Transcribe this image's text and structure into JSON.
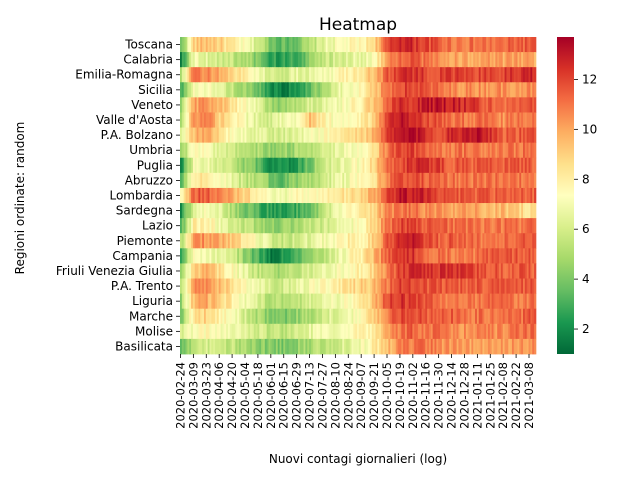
{
  "chart_data": {
    "type": "heatmap",
    "title": "Heatmap",
    "xlabel": "Nuovi contagi giornalieri (log)",
    "ylabel": "Regioni ordinate: random",
    "colormap": "RdYlGn_r",
    "colorbar": {
      "vmin": 1,
      "vmax": 13.7,
      "ticks": [
        2,
        4,
        6,
        8,
        10,
        12
      ]
    },
    "regions": [
      "Toscana",
      "Calabria",
      "Emilia-Romagna",
      "Sicilia",
      "Veneto",
      "Valle d'Aosta",
      "P.A. Bolzano",
      "Umbria",
      "Puglia",
      "Abruzzo",
      "Lombardia",
      "Sardegna",
      "Lazio",
      "Piemonte",
      "Campania",
      "Friuli Venezia Giulia",
      "P.A. Trento",
      "Liguria",
      "Marche",
      "Molise",
      "Basilicata"
    ],
    "x_tick_labels": [
      "2020-02-24",
      "2020-03-09",
      "2020-03-23",
      "2020-04-06",
      "2020-04-20",
      "2020-05-04",
      "2020-05-18",
      "2020-06-01",
      "2020-06-15",
      "2020-06-29",
      "2020-07-13",
      "2020-07-27",
      "2020-08-10",
      "2020-08-24",
      "2020-09-07",
      "2020-09-21",
      "2020-10-05",
      "2020-10-19",
      "2020-11-02",
      "2020-11-16",
      "2020-11-30",
      "2020-12-14",
      "2020-12-28",
      "2021-01-11",
      "2021-01-25",
      "2021-02-08",
      "2021-02-22",
      "2021-03-08"
    ],
    "anchor_dates": [
      "2020-02-24",
      "2020-03-09",
      "2020-03-23",
      "2020-04-06",
      "2020-04-20",
      "2020-05-04",
      "2020-05-18",
      "2020-06-01",
      "2020-06-15",
      "2020-06-29",
      "2020-07-13",
      "2020-07-27",
      "2020-08-10",
      "2020-08-24",
      "2020-09-07",
      "2020-09-21",
      "2020-10-05",
      "2020-10-19",
      "2020-11-02",
      "2020-11-16",
      "2020-11-30",
      "2020-12-14",
      "2020-12-28",
      "2021-01-11",
      "2021-01-25",
      "2021-02-08",
      "2021-02-22",
      "2021-03-08",
      "2021-03-14"
    ],
    "values": [
      [
        3.5,
        9.0,
        9.5,
        9.0,
        8.0,
        7.0,
        6.0,
        4.0,
        3.5,
        4.0,
        5.0,
        6.5,
        7.0,
        7.5,
        7.5,
        9.0,
        11.5,
        13.0,
        12.5,
        12.0,
        11.5,
        11.0,
        11.0,
        11.0,
        11.0,
        11.0,
        11.5,
        11.5,
        11.5
      ],
      [
        2.0,
        7.0,
        6.5,
        6.0,
        5.5,
        5.0,
        4.0,
        2.5,
        2.5,
        3.0,
        4.5,
        5.5,
        6.0,
        6.5,
        6.5,
        7.5,
        10.0,
        11.5,
        11.5,
        11.0,
        10.5,
        10.0,
        10.0,
        10.0,
        10.0,
        10.0,
        10.0,
        10.0,
        10.0
      ],
      [
        5.0,
        11.0,
        10.5,
        10.0,
        9.0,
        8.0,
        7.0,
        6.0,
        6.0,
        6.5,
        6.5,
        7.0,
        7.5,
        8.0,
        8.5,
        9.5,
        11.5,
        12.5,
        12.5,
        12.0,
        12.0,
        12.0,
        12.0,
        12.0,
        12.0,
        12.0,
        12.5,
        12.5,
        13.0
      ],
      [
        3.0,
        7.0,
        7.5,
        6.5,
        5.5,
        4.5,
        3.5,
        2.0,
        1.5,
        2.5,
        3.5,
        5.0,
        6.5,
        7.0,
        7.5,
        9.0,
        11.0,
        12.0,
        12.0,
        11.5,
        11.0,
        10.5,
        10.5,
        10.5,
        10.5,
        10.5,
        10.5,
        10.5,
        10.5
      ],
      [
        5.0,
        10.0,
        10.5,
        9.5,
        8.5,
        7.5,
        6.5,
        4.5,
        4.5,
        5.5,
        6.0,
        6.5,
        7.0,
        7.5,
        8.0,
        9.5,
        11.5,
        12.5,
        12.5,
        13.0,
        13.0,
        13.0,
        12.5,
        12.0,
        11.5,
        11.0,
        11.5,
        11.5,
        11.5
      ],
      [
        5.0,
        10.5,
        11.0,
        9.0,
        8.0,
        7.0,
        6.5,
        6.0,
        7.0,
        7.0,
        9.5,
        8.0,
        7.0,
        7.5,
        8.0,
        9.0,
        12.0,
        13.0,
        12.5,
        12.0,
        11.5,
        11.0,
        11.0,
        11.0,
        11.0,
        10.5,
        11.0,
        11.0,
        11.0
      ],
      [
        6.0,
        9.5,
        10.0,
        8.5,
        7.5,
        7.0,
        6.5,
        6.0,
        6.0,
        6.5,
        7.0,
        7.5,
        8.0,
        8.5,
        9.0,
        9.5,
        12.0,
        13.0,
        13.5,
        12.5,
        12.0,
        12.5,
        13.0,
        13.5,
        12.5,
        11.5,
        11.5,
        11.5,
        11.5
      ],
      [
        4.0,
        7.5,
        7.0,
        6.5,
        6.0,
        5.5,
        5.0,
        4.5,
        4.5,
        5.0,
        5.5,
        6.0,
        6.5,
        7.0,
        7.5,
        8.5,
        11.0,
        12.0,
        12.0,
        11.5,
        11.0,
        11.0,
        11.0,
        11.0,
        11.0,
        11.0,
        11.0,
        11.0,
        11.0
      ],
      [
        2.0,
        7.0,
        7.0,
        6.0,
        5.5,
        4.5,
        3.5,
        2.0,
        2.0,
        2.5,
        4.0,
        5.5,
        6.5,
        7.0,
        7.5,
        9.0,
        11.0,
        12.0,
        12.5,
        12.5,
        12.0,
        11.5,
        11.5,
        11.5,
        11.5,
        11.5,
        11.5,
        11.5,
        11.5
      ],
      [
        3.0,
        8.5,
        8.0,
        7.5,
        6.5,
        5.5,
        5.0,
        4.0,
        3.5,
        4.5,
        5.0,
        5.5,
        6.5,
        7.0,
        7.5,
        8.5,
        11.0,
        12.0,
        12.0,
        11.5,
        11.0,
        11.0,
        11.0,
        11.0,
        11.0,
        11.0,
        11.0,
        11.0,
        11.0
      ],
      [
        7.0,
        11.5,
        11.5,
        10.5,
        10.0,
        9.0,
        8.0,
        7.0,
        7.0,
        7.5,
        7.5,
        7.5,
        8.0,
        8.5,
        9.0,
        10.0,
        12.0,
        13.0,
        13.0,
        12.5,
        12.0,
        11.5,
        11.5,
        11.5,
        11.5,
        11.5,
        11.5,
        11.5,
        11.5
      ],
      [
        2.0,
        6.5,
        7.5,
        6.5,
        5.0,
        4.0,
        3.0,
        2.5,
        2.5,
        3.0,
        3.5,
        5.0,
        6.5,
        7.5,
        8.0,
        9.0,
        10.5,
        11.0,
        11.0,
        10.5,
        10.5,
        10.0,
        10.0,
        10.0,
        9.5,
        9.5,
        9.0,
        8.5,
        8.5
      ],
      [
        3.0,
        8.0,
        8.0,
        7.0,
        6.0,
        5.5,
        5.0,
        4.5,
        4.5,
        5.0,
        5.5,
        6.0,
        6.5,
        7.0,
        7.5,
        9.0,
        11.0,
        12.0,
        12.0,
        11.5,
        11.5,
        11.0,
        11.0,
        11.0,
        11.0,
        11.0,
        11.0,
        11.0,
        11.0
      ],
      [
        5.0,
        10.5,
        10.5,
        10.0,
        9.0,
        8.0,
        7.0,
        6.0,
        5.5,
        6.0,
        6.5,
        7.0,
        7.5,
        8.0,
        8.0,
        9.0,
        11.5,
        13.0,
        13.0,
        12.0,
        11.5,
        11.5,
        11.5,
        11.0,
        11.0,
        11.0,
        11.5,
        11.5,
        11.5
      ],
      [
        3.0,
        7.5,
        7.0,
        6.5,
        6.0,
        4.5,
        3.0,
        1.5,
        2.5,
        3.5,
        4.5,
        5.5,
        6.5,
        7.5,
        8.0,
        9.5,
        11.5,
        12.5,
        12.5,
        11.5,
        11.0,
        11.0,
        11.0,
        11.0,
        11.5,
        11.5,
        11.5,
        11.5,
        11.5
      ],
      [
        4.5,
        9.0,
        9.5,
        8.5,
        7.5,
        6.5,
        5.5,
        5.0,
        5.0,
        5.5,
        6.0,
        6.5,
        7.0,
        7.5,
        8.0,
        9.0,
        11.0,
        12.0,
        12.5,
        12.5,
        12.5,
        12.5,
        12.0,
        12.0,
        11.5,
        11.5,
        11.5,
        11.5,
        11.5
      ],
      [
        5.0,
        10.5,
        10.5,
        9.5,
        8.5,
        7.5,
        6.5,
        6.0,
        6.0,
        6.5,
        7.0,
        7.5,
        8.0,
        8.5,
        9.0,
        9.5,
        11.0,
        12.0,
        12.0,
        11.5,
        11.5,
        11.5,
        11.5,
        11.5,
        11.5,
        11.5,
        11.5,
        11.5,
        12.0
      ],
      [
        4.5,
        9.5,
        10.0,
        9.0,
        8.0,
        7.0,
        6.0,
        5.0,
        5.0,
        5.5,
        6.0,
        6.5,
        7.0,
        7.5,
        8.0,
        9.5,
        12.0,
        12.5,
        12.0,
        11.5,
        11.0,
        11.0,
        11.0,
        11.0,
        11.0,
        11.0,
        11.0,
        11.0,
        11.0
      ],
      [
        4.0,
        8.5,
        9.0,
        8.0,
        7.0,
        6.0,
        5.0,
        4.0,
        4.0,
        4.5,
        5.0,
        6.0,
        6.5,
        7.0,
        7.5,
        9.0,
        11.0,
        12.0,
        12.0,
        11.5,
        11.5,
        11.5,
        11.0,
        11.0,
        11.0,
        11.0,
        11.0,
        11.5,
        12.0
      ],
      [
        6.0,
        7.5,
        7.5,
        7.0,
        7.0,
        6.5,
        6.0,
        5.5,
        5.5,
        6.0,
        6.5,
        7.0,
        7.0,
        7.5,
        7.5,
        8.0,
        10.0,
        11.0,
        11.5,
        11.0,
        11.0,
        10.5,
        10.5,
        10.5,
        10.5,
        10.5,
        11.0,
        11.0,
        11.0
      ],
      [
        4.0,
        5.0,
        6.0,
        5.5,
        5.5,
        5.0,
        4.5,
        4.0,
        4.0,
        4.5,
        5.0,
        5.5,
        6.0,
        6.5,
        7.0,
        8.0,
        9.5,
        10.5,
        11.0,
        11.0,
        10.5,
        10.5,
        10.0,
        10.0,
        10.0,
        10.0,
        10.5,
        10.5,
        11.0
      ]
    ]
  }
}
